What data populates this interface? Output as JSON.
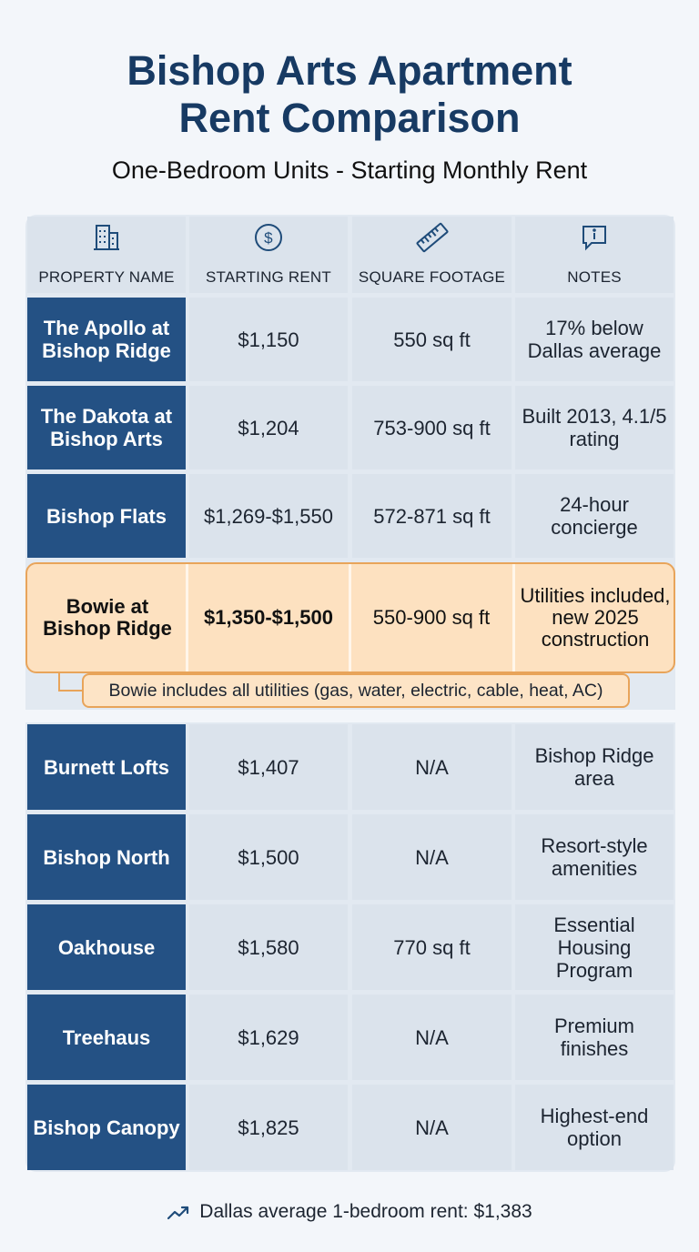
{
  "title_line1": "Bishop Arts Apartment",
  "title_line2": "Rent Comparison",
  "subtitle": "One-Bedroom Units - Starting Monthly Rent",
  "columns": [
    {
      "label": "PROPERTY NAME",
      "icon": "building-icon"
    },
    {
      "label": "STARTING RENT",
      "icon": "dollar-circle-icon"
    },
    {
      "label": "SQUARE FOOTAGE",
      "icon": "ruler-icon"
    },
    {
      "label": "NOTES",
      "icon": "info-message-icon"
    }
  ],
  "rows": [
    {
      "name": "The Apollo at Bishop Ridge",
      "rent": "$1,150",
      "sqft": "550 sq ft",
      "notes": "17% below Dallas average"
    },
    {
      "name": "The Dakota at Bishop Arts",
      "rent": "$1,204",
      "sqft": "753-900 sq ft",
      "notes": "Built 2013, 4.1/5 rating"
    },
    {
      "name": "Bishop Flats",
      "rent": "$1,269-$1,550",
      "sqft": "572-871 sq ft",
      "notes": "24-hour concierge"
    },
    {
      "name": "Bowie at Bishop Ridge",
      "rent": "$1,350-$1,500",
      "sqft": "550-900 sq ft",
      "notes": "Utilities included, new 2025 construction"
    },
    {
      "name": "Burnett Lofts",
      "rent": "$1,407",
      "sqft": "N/A",
      "notes": "Bishop Ridge area"
    },
    {
      "name": "Bishop North",
      "rent": "$1,500",
      "sqft": "N/A",
      "notes": "Resort-style amenities"
    },
    {
      "name": "Oakhouse",
      "rent": "$1,580",
      "sqft": "770 sq ft",
      "notes": "Essential Housing Program"
    },
    {
      "name": "Treehaus",
      "rent": "$1,629",
      "sqft": "N/A",
      "notes": "Premium finishes"
    },
    {
      "name": "Bishop Canopy",
      "rent": "$1,825",
      "sqft": "N/A",
      "notes": "Highest-end option"
    }
  ],
  "callout": "Bowie includes all utilities (gas, water, electric, cable, heat, AC)",
  "footer": "Dallas average 1-bedroom rent: $1,383",
  "footer_icon": "trend-up-icon",
  "colors": {
    "navy": "#245184",
    "title": "#173a63",
    "highlight": "#fde1c0",
    "highlight_border": "#e8a45a"
  }
}
